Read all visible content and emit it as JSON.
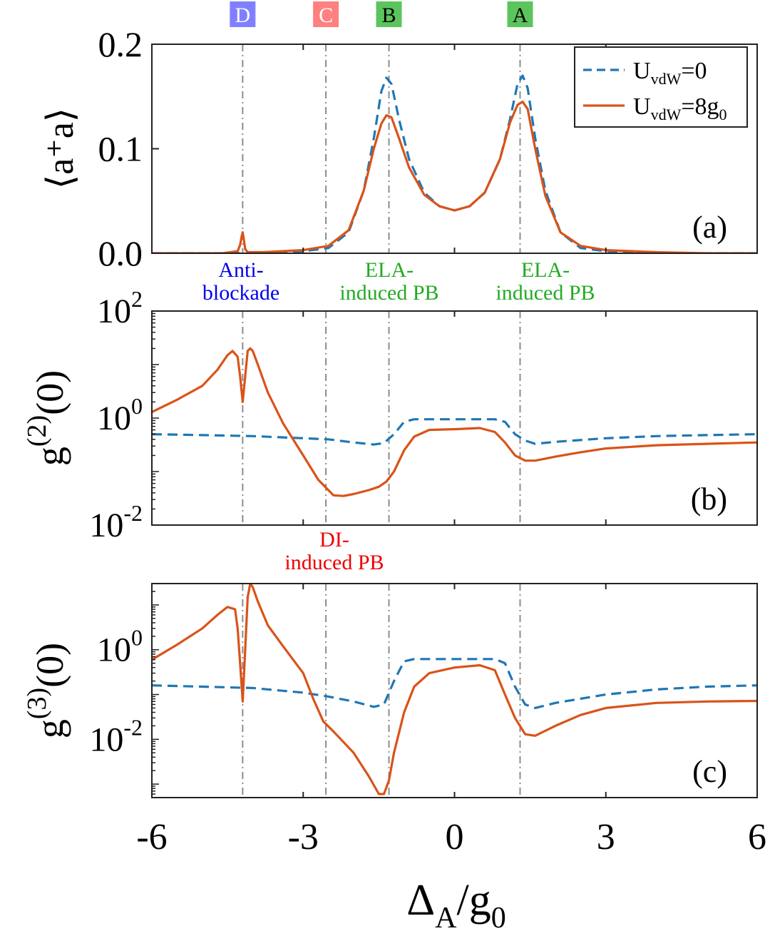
{
  "colors": {
    "dashed": "#1f77b4",
    "solid": "#d95319",
    "guide": "#8c8c8c",
    "label_D": "#8080ff",
    "label_C": "#ff8080",
    "label_AB": "#5cc45c",
    "text_blue": "#0000ee",
    "text_green": "#22aa22",
    "text_red": "#ee0000"
  },
  "top_labels": [
    {
      "text": "D",
      "x": -4.2
    },
    {
      "text": "C",
      "x": -2.55
    },
    {
      "text": "B",
      "x": -1.3
    },
    {
      "text": "A",
      "x": 1.3
    }
  ],
  "annotations": {
    "anti": [
      "Anti-",
      "blockade"
    ],
    "ela1": [
      "ELA-",
      "induced PB"
    ],
    "ela2": [
      "ELA-",
      "induced PB"
    ],
    "di": [
      "DI-",
      "induced PB"
    ]
  },
  "legend": {
    "dashed": {
      "main": "U",
      "sub": "vdW",
      "rest": "=0"
    },
    "solid": {
      "main": "U",
      "sub": "vdW",
      "rest": "=8g",
      "sub2": "0"
    }
  },
  "xaxis": {
    "ticks": [
      "-6",
      "-3",
      "0",
      "3",
      "6"
    ],
    "label_main": "Δ",
    "label_sub": "A",
    "label_mid": "/g",
    "label_sub2": "0"
  },
  "chart_data": [
    {
      "type": "line",
      "panel": "(a)",
      "ylabel": "⟨a⁺a⟩",
      "yscale": "linear",
      "xlim": [
        -6,
        6
      ],
      "ylim": [
        0,
        0.2
      ],
      "yticks": [
        "0.0",
        "0.1",
        "0.2"
      ],
      "series": [
        {
          "style": "dashed",
          "x": [
            -6,
            -5,
            -4.6,
            -4.3,
            -4.2,
            -4.1,
            -3.8,
            -3,
            -2.5,
            -2.1,
            -1.8,
            -1.6,
            -1.45,
            -1.35,
            -1.25,
            -1.1,
            -0.9,
            -0.6,
            -0.3,
            0,
            0.3,
            0.6,
            0.9,
            1.1,
            1.25,
            1.35,
            1.45,
            1.6,
            1.8,
            2.1,
            2.5,
            3,
            4,
            5,
            6
          ],
          "y": [
            0,
            0,
            0,
            0,
            0,
            0,
            0,
            0.002,
            0.005,
            0.02,
            0.06,
            0.11,
            0.155,
            0.168,
            0.162,
            0.128,
            0.09,
            0.058,
            0.045,
            0.041,
            0.045,
            0.058,
            0.09,
            0.128,
            0.162,
            0.17,
            0.158,
            0.11,
            0.06,
            0.02,
            0.005,
            0.002,
            0,
            0,
            0
          ]
        },
        {
          "style": "solid",
          "x": [
            -6,
            -5,
            -4.6,
            -4.3,
            -4.25,
            -4.22,
            -4.2,
            -4.18,
            -4.15,
            -4.1,
            -3.8,
            -3,
            -2.5,
            -2.1,
            -1.8,
            -1.6,
            -1.45,
            -1.35,
            -1.25,
            -1.1,
            -0.9,
            -0.6,
            -0.3,
            0,
            0.3,
            0.6,
            0.9,
            1.1,
            1.25,
            1.35,
            1.45,
            1.6,
            1.8,
            2.1,
            2.5,
            3,
            4,
            5,
            6
          ],
          "y": [
            0,
            0,
            0,
            0.002,
            0.008,
            0.016,
            0.02,
            0.014,
            0.004,
            0.001,
            0.001,
            0.003,
            0.007,
            0.022,
            0.06,
            0.1,
            0.124,
            0.132,
            0.13,
            0.11,
            0.082,
            0.056,
            0.045,
            0.041,
            0.045,
            0.058,
            0.09,
            0.125,
            0.142,
            0.145,
            0.138,
            0.1,
            0.055,
            0.02,
            0.007,
            0.003,
            0.001,
            0,
            0
          ]
        }
      ]
    },
    {
      "type": "line",
      "panel": "(b)",
      "ylabel": "g(2)(0)",
      "yscale": "log",
      "xlim": [
        -6,
        6
      ],
      "ylim": [
        0.01,
        100
      ],
      "yticks": [
        {
          "base": "10",
          "exp": "-2"
        },
        {
          "base": "10",
          "exp": "0"
        },
        {
          "base": "10",
          "exp": "2"
        }
      ],
      "series": [
        {
          "style": "dashed",
          "x": [
            -6,
            -5,
            -4,
            -3,
            -2.5,
            -2,
            -1.6,
            -1.4,
            -1.2,
            -1,
            -0.8,
            0,
            0.8,
            1,
            1.2,
            1.4,
            1.6,
            2,
            3,
            4,
            5,
            6
          ],
          "y": [
            0.5,
            0.48,
            0.46,
            0.42,
            0.4,
            0.35,
            0.32,
            0.34,
            0.5,
            0.85,
            0.95,
            0.95,
            0.95,
            0.85,
            0.5,
            0.38,
            0.33,
            0.36,
            0.42,
            0.46,
            0.48,
            0.5
          ]
        },
        {
          "style": "solid",
          "x": [
            -6,
            -5.5,
            -5,
            -4.7,
            -4.5,
            -4.4,
            -4.3,
            -4.25,
            -4.2,
            -4.15,
            -4.1,
            -4.05,
            -4,
            -3.9,
            -3.7,
            -3.4,
            -3,
            -2.7,
            -2.4,
            -2.2,
            -2,
            -1.7,
            -1.5,
            -1.35,
            -1.2,
            -1,
            -0.8,
            -0.5,
            0,
            0.5,
            0.8,
            1,
            1.2,
            1.4,
            1.6,
            2,
            2.5,
            3,
            4,
            5,
            6
          ],
          "y": [
            1.3,
            2.2,
            4,
            8,
            15,
            18,
            14,
            6,
            2,
            6,
            18,
            20,
            18,
            10,
            3,
            0.8,
            0.2,
            0.07,
            0.036,
            0.035,
            0.038,
            0.045,
            0.052,
            0.065,
            0.1,
            0.25,
            0.45,
            0.6,
            0.62,
            0.65,
            0.55,
            0.35,
            0.2,
            0.16,
            0.16,
            0.19,
            0.23,
            0.27,
            0.31,
            0.33,
            0.35
          ]
        }
      ]
    },
    {
      "type": "line",
      "panel": "(c)",
      "ylabel": "g(3)(0)",
      "yscale": "log",
      "xlim": [
        -6,
        6
      ],
      "ylim": [
        0.0005,
        30
      ],
      "yticks": [
        {
          "base": "10",
          "exp": "-2"
        },
        {
          "base": "10",
          "exp": "0"
        }
      ],
      "series": [
        {
          "style": "dashed",
          "x": [
            -6,
            -5,
            -4,
            -3,
            -2.5,
            -2,
            -1.6,
            -1.4,
            -1.2,
            -1,
            -0.8,
            0,
            0.8,
            1,
            1.2,
            1.4,
            1.6,
            2,
            3,
            4,
            5,
            6
          ],
          "y": [
            0.16,
            0.15,
            0.14,
            0.11,
            0.09,
            0.07,
            0.053,
            0.06,
            0.2,
            0.55,
            0.62,
            0.62,
            0.62,
            0.5,
            0.15,
            0.06,
            0.05,
            0.065,
            0.1,
            0.13,
            0.15,
            0.16
          ]
        },
        {
          "style": "solid",
          "x": [
            -6,
            -5.5,
            -5,
            -4.7,
            -4.5,
            -4.35,
            -4.3,
            -4.25,
            -4.2,
            -4.15,
            -4.1,
            -4.05,
            -4,
            -3.9,
            -3.7,
            -3.4,
            -3,
            -2.8,
            -2.6,
            -2.4,
            -2,
            -1.7,
            -1.5,
            -1.4,
            -1.3,
            -1.2,
            -1,
            -0.8,
            -0.5,
            0,
            0.5,
            0.8,
            1,
            1.2,
            1.4,
            1.6,
            2,
            2.5,
            3,
            4,
            5,
            6
          ],
          "y": [
            0.6,
            1.3,
            3,
            6,
            9,
            8,
            3,
            0.5,
            0.07,
            1,
            15,
            30,
            25,
            12,
            3.5,
            1.2,
            0.3,
            0.08,
            0.025,
            0.015,
            0.005,
            0.0015,
            0.0006,
            0.0006,
            0.0012,
            0.005,
            0.04,
            0.15,
            0.3,
            0.4,
            0.45,
            0.35,
            0.1,
            0.03,
            0.013,
            0.012,
            0.02,
            0.035,
            0.05,
            0.065,
            0.07,
            0.072
          ]
        }
      ]
    }
  ]
}
